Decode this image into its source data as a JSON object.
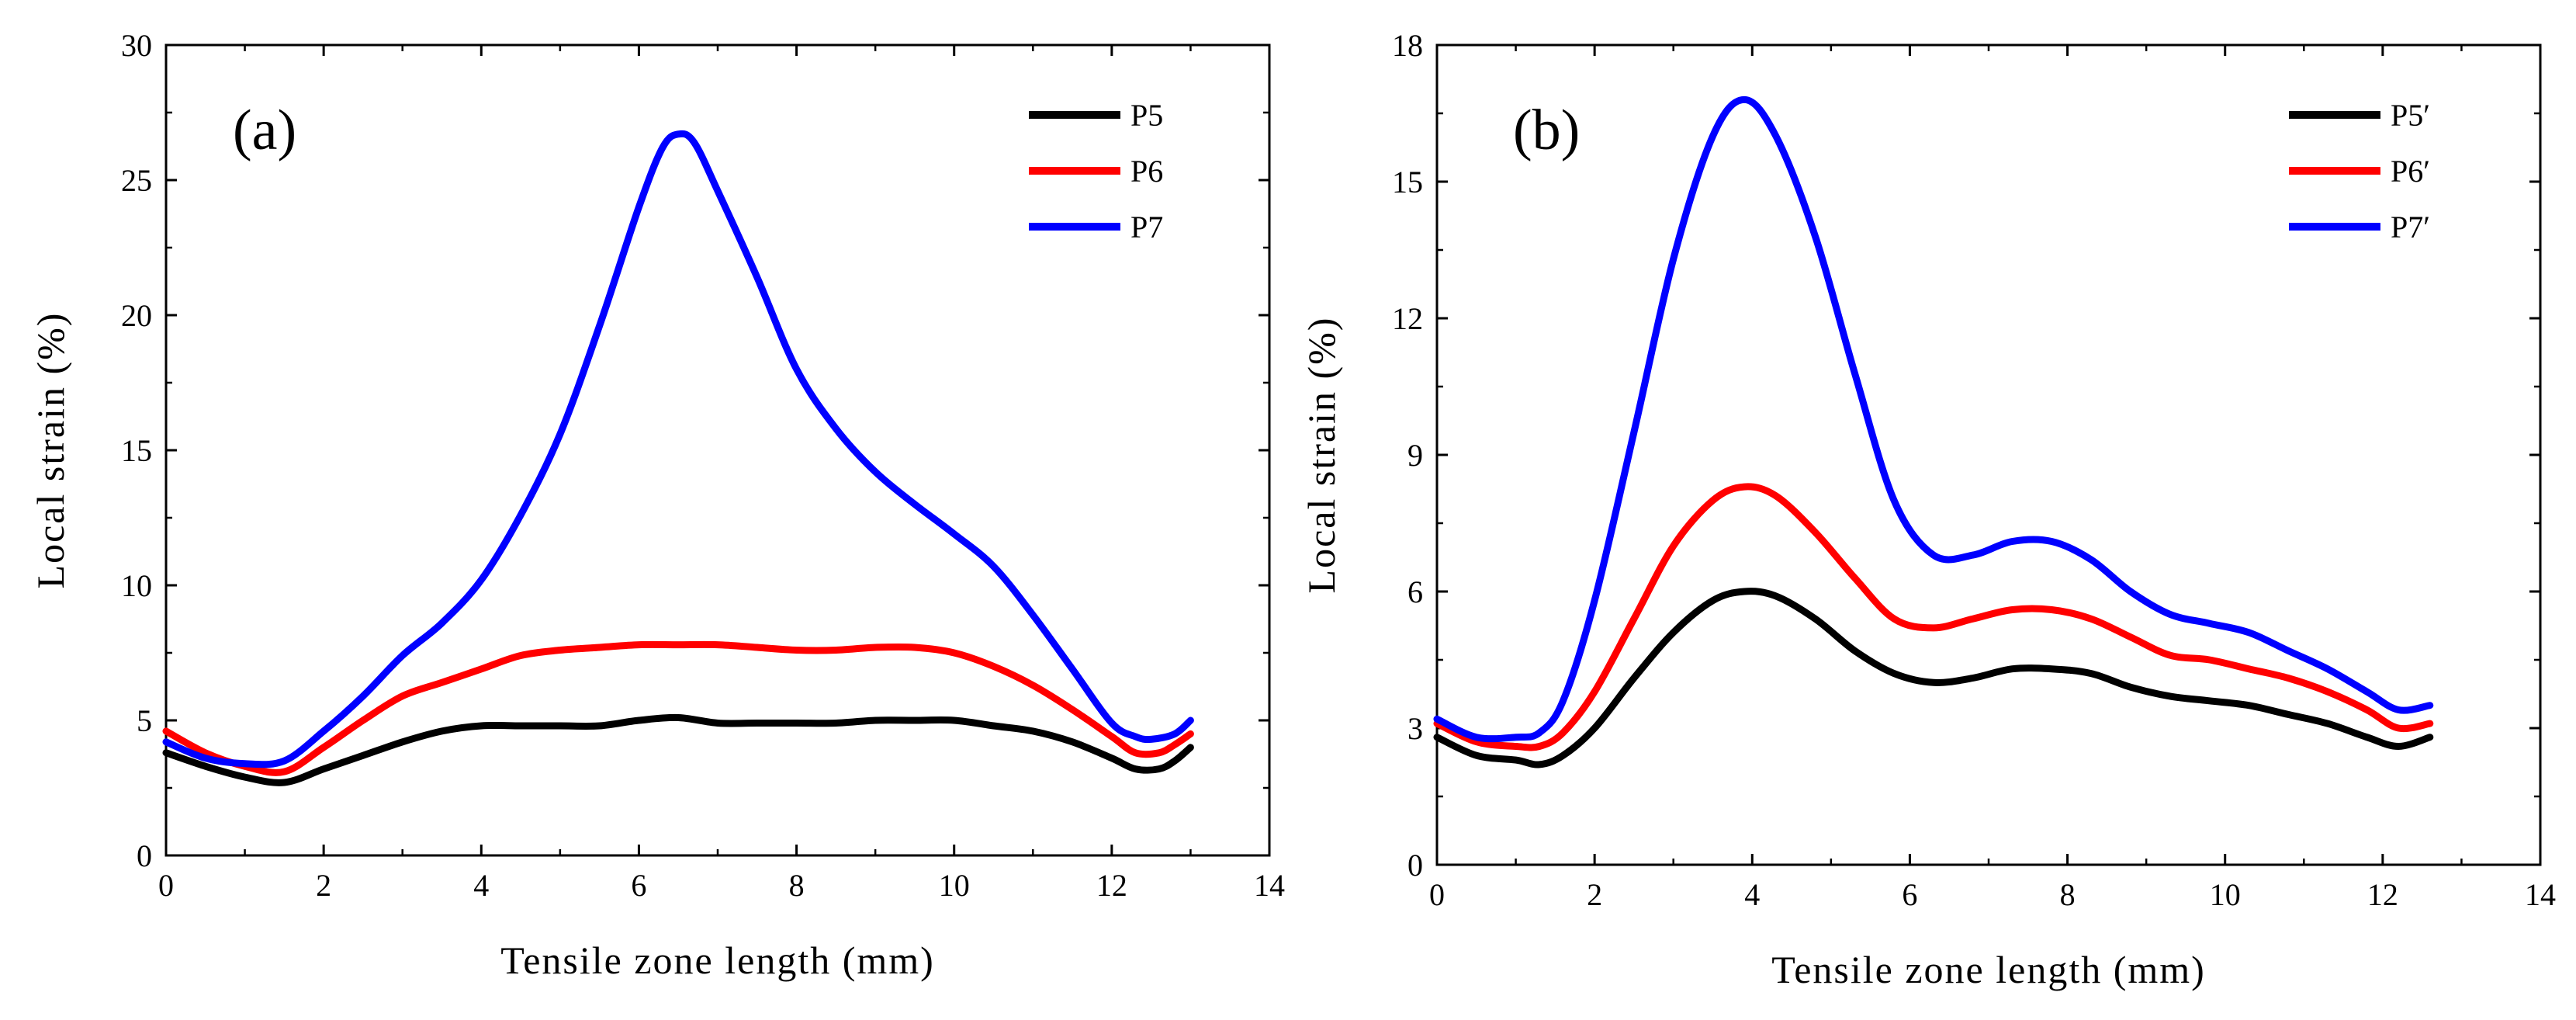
{
  "chart_data": [
    {
      "type": "line",
      "panel_label": "(a)",
      "xlabel": "Tensile zone length (mm)",
      "ylabel": "Local strain (%)",
      "xlim": [
        0,
        14
      ],
      "ylim": [
        0,
        30
      ],
      "xticks": [
        0,
        2,
        4,
        6,
        8,
        10,
        12,
        14
      ],
      "yticks": [
        0,
        5,
        10,
        15,
        20,
        25,
        30
      ],
      "legend_position": "top-right",
      "series": [
        {
          "name": "P5",
          "color": "#000000",
          "x": [
            0,
            0.5,
            1.0,
            1.5,
            2.0,
            2.5,
            3.0,
            3.5,
            4.0,
            4.5,
            5.0,
            5.5,
            6.0,
            6.5,
            7.0,
            7.5,
            8.0,
            8.5,
            9.0,
            9.5,
            10.0,
            10.5,
            11.0,
            11.5,
            12.0,
            12.3,
            12.6,
            12.8,
            13.0
          ],
          "y": [
            3.8,
            3.3,
            2.9,
            2.7,
            3.2,
            3.7,
            4.2,
            4.6,
            4.8,
            4.8,
            4.8,
            4.8,
            5.0,
            5.1,
            4.9,
            4.9,
            4.9,
            4.9,
            5.0,
            5.0,
            5.0,
            4.8,
            4.6,
            4.2,
            3.6,
            3.2,
            3.2,
            3.5,
            4.0
          ]
        },
        {
          "name": "P6",
          "color": "#ff0000",
          "x": [
            0,
            0.5,
            1.0,
            1.5,
            2.0,
            2.5,
            3.0,
            3.5,
            4.0,
            4.5,
            5.0,
            5.5,
            6.0,
            6.5,
            7.0,
            7.5,
            8.0,
            8.5,
            9.0,
            9.5,
            10.0,
            10.5,
            11.0,
            11.5,
            12.0,
            12.3,
            12.6,
            12.8,
            13.0
          ],
          "y": [
            4.6,
            3.8,
            3.3,
            3.1,
            4.0,
            5.0,
            5.9,
            6.4,
            6.9,
            7.4,
            7.6,
            7.7,
            7.8,
            7.8,
            7.8,
            7.7,
            7.6,
            7.6,
            7.7,
            7.7,
            7.5,
            7.0,
            6.3,
            5.4,
            4.4,
            3.8,
            3.8,
            4.1,
            4.5
          ]
        },
        {
          "name": "P7",
          "color": "#0000ff",
          "x": [
            0,
            0.5,
            1.0,
            1.5,
            2.0,
            2.5,
            3.0,
            3.5,
            4.0,
            4.5,
            5.0,
            5.5,
            6.0,
            6.3,
            6.5,
            6.7,
            7.0,
            7.5,
            8.0,
            8.5,
            9.0,
            9.5,
            10.0,
            10.5,
            11.0,
            11.5,
            12.0,
            12.3,
            12.5,
            12.8,
            13.0
          ],
          "y": [
            4.2,
            3.6,
            3.4,
            3.5,
            4.6,
            5.9,
            7.4,
            8.6,
            10.2,
            12.6,
            15.6,
            19.6,
            24.0,
            26.2,
            26.7,
            26.4,
            24.6,
            21.4,
            18.0,
            15.8,
            14.2,
            13.0,
            11.9,
            10.7,
            8.9,
            6.9,
            4.9,
            4.4,
            4.3,
            4.5,
            5.0
          ]
        }
      ]
    },
    {
      "type": "line",
      "panel_label": "(b)",
      "xlabel": "Tensile zone length (mm)",
      "ylabel": "Local strain (%)",
      "xlim": [
        0,
        14
      ],
      "ylim": [
        0,
        18
      ],
      "xticks": [
        0,
        2,
        4,
        6,
        8,
        10,
        12,
        14
      ],
      "yticks": [
        0,
        3,
        6,
        9,
        12,
        15,
        18
      ],
      "legend_position": "top-right",
      "series": [
        {
          "name": "P5′",
          "color": "#000000",
          "x": [
            0,
            0.5,
            1.0,
            1.3,
            1.6,
            2.0,
            2.5,
            3.0,
            3.5,
            3.9,
            4.3,
            4.8,
            5.3,
            5.8,
            6.3,
            6.8,
            7.3,
            7.8,
            8.3,
            8.8,
            9.3,
            9.8,
            10.3,
            10.8,
            11.3,
            11.8,
            12.2,
            12.6
          ],
          "y": [
            2.8,
            2.4,
            2.3,
            2.2,
            2.4,
            3.0,
            4.1,
            5.1,
            5.8,
            6.0,
            5.9,
            5.4,
            4.7,
            4.2,
            4.0,
            4.1,
            4.3,
            4.3,
            4.2,
            3.9,
            3.7,
            3.6,
            3.5,
            3.3,
            3.1,
            2.8,
            2.6,
            2.8
          ]
        },
        {
          "name": "P6′",
          "color": "#ff0000",
          "x": [
            0,
            0.5,
            1.0,
            1.3,
            1.6,
            2.0,
            2.5,
            3.0,
            3.5,
            3.9,
            4.3,
            4.8,
            5.3,
            5.8,
            6.3,
            6.8,
            7.3,
            7.8,
            8.3,
            8.8,
            9.3,
            9.8,
            10.3,
            10.8,
            11.3,
            11.8,
            12.2,
            12.6
          ],
          "y": [
            3.1,
            2.7,
            2.6,
            2.6,
            2.9,
            3.8,
            5.4,
            7.0,
            8.0,
            8.3,
            8.1,
            7.3,
            6.3,
            5.4,
            5.2,
            5.4,
            5.6,
            5.6,
            5.4,
            5.0,
            4.6,
            4.5,
            4.3,
            4.1,
            3.8,
            3.4,
            3.0,
            3.1
          ]
        },
        {
          "name": "P7′",
          "color": "#0000ff",
          "x": [
            0,
            0.5,
            1.0,
            1.3,
            1.6,
            2.0,
            2.5,
            3.0,
            3.5,
            3.9,
            4.3,
            4.8,
            5.3,
            5.8,
            6.3,
            6.8,
            7.3,
            7.8,
            8.3,
            8.8,
            9.3,
            9.8,
            10.3,
            10.8,
            11.3,
            11.8,
            12.2,
            12.6
          ],
          "y": [
            3.2,
            2.8,
            2.8,
            2.9,
            3.6,
            5.8,
            9.5,
            13.3,
            16.0,
            16.8,
            16.0,
            13.8,
            10.8,
            8.0,
            6.8,
            6.8,
            7.1,
            7.1,
            6.7,
            6.0,
            5.5,
            5.3,
            5.1,
            4.7,
            4.3,
            3.8,
            3.4,
            3.5
          ]
        }
      ]
    }
  ]
}
